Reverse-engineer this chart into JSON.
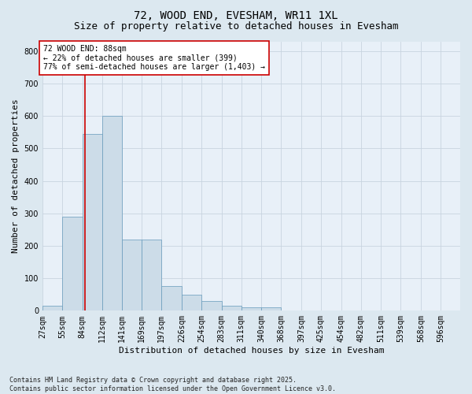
{
  "title": "72, WOOD END, EVESHAM, WR11 1XL",
  "subtitle": "Size of property relative to detached houses in Evesham",
  "xlabel": "Distribution of detached houses by size in Evesham",
  "ylabel": "Number of detached properties",
  "bin_labels": [
    "27sqm",
    "55sqm",
    "84sqm",
    "112sqm",
    "141sqm",
    "169sqm",
    "197sqm",
    "226sqm",
    "254sqm",
    "283sqm",
    "311sqm",
    "340sqm",
    "368sqm",
    "397sqm",
    "425sqm",
    "454sqm",
    "482sqm",
    "511sqm",
    "539sqm",
    "568sqm",
    "596sqm"
  ],
  "bin_edges": [
    27,
    55,
    84,
    112,
    141,
    169,
    197,
    226,
    254,
    283,
    311,
    340,
    368,
    397,
    425,
    454,
    482,
    511,
    539,
    568,
    596
  ],
  "bar_heights": [
    15,
    290,
    545,
    600,
    220,
    220,
    75,
    50,
    30,
    15,
    10,
    10,
    0,
    0,
    0,
    0,
    0,
    0,
    0,
    0
  ],
  "bar_color": "#ccdce8",
  "bar_edge_color": "#6699bb",
  "vline_x": 88,
  "vline_color": "#cc0000",
  "annotation_text": "72 WOOD END: 88sqm\n← 22% of detached houses are smaller (399)\n77% of semi-detached houses are larger (1,403) →",
  "annotation_box_color": "#cc0000",
  "ylim": [
    0,
    830
  ],
  "yticks": [
    0,
    100,
    200,
    300,
    400,
    500,
    600,
    700,
    800
  ],
  "footer_line1": "Contains HM Land Registry data © Crown copyright and database right 2025.",
  "footer_line2": "Contains public sector information licensed under the Open Government Licence v3.0.",
  "bg_color": "#dce8f0",
  "plot_bg_color": "#e8f0f8",
  "grid_color": "#c8d4e0",
  "title_fontsize": 10,
  "subtitle_fontsize": 9,
  "axis_label_fontsize": 8,
  "tick_fontsize": 7,
  "annotation_fontsize": 7,
  "footer_fontsize": 6
}
